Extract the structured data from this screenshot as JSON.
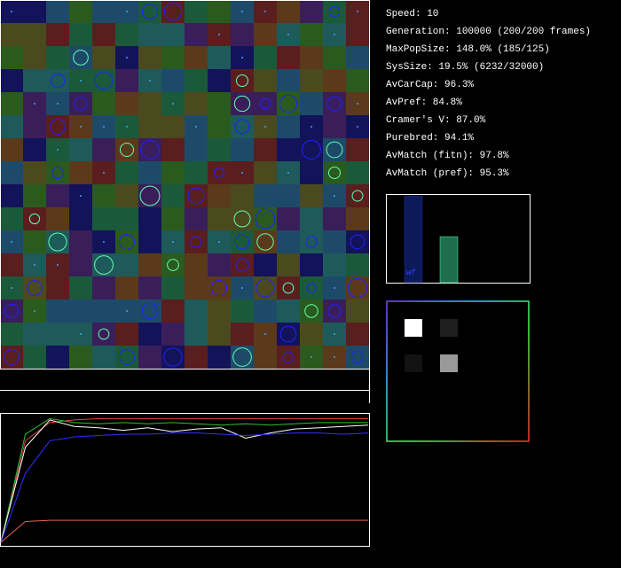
{
  "stats": [
    "Speed: 10",
    "Generation: 100000 (200/200 frames)",
    "MaxPopSize: 148.0% (185/125)",
    "SysSize: 19.5% (6232/32000)",
    "AvCarCap: 96.3%",
    "AvPref: 84.8%",
    "Cramer's V: 87.0%",
    "Purebred: 94.1%",
    "AvMatch (fitn): 97.8%",
    "AvMatch (pref): 95.3%"
  ],
  "bar_chart": {
    "caption": "wf",
    "values": [
      100,
      53
    ],
    "colors": [
      "#0d1a5a",
      "#1e6e4e"
    ],
    "ylim": [
      0,
      100
    ]
  },
  "matrix": {
    "values": [
      [
        100,
        12
      ],
      [
        7,
        60
      ]
    ]
  },
  "history": {
    "ylim": [
      0,
      100
    ],
    "series": [
      {
        "color": "#e04040",
        "values": [
          2,
          80,
          94,
          96,
          97,
          97,
          97,
          97,
          97,
          97,
          97,
          97,
          97,
          97,
          97,
          97
        ]
      },
      {
        "color": "#30c030",
        "values": [
          2,
          85,
          97,
          94,
          93,
          94,
          93,
          94,
          93,
          92,
          93,
          92,
          93,
          94,
          94,
          94
        ]
      },
      {
        "color": "#ffffff",
        "values": [
          2,
          75,
          96,
          91,
          90,
          88,
          90,
          87,
          89,
          90,
          82,
          86,
          89,
          90,
          91,
          92
        ]
      },
      {
        "color": "#3030ff",
        "values": [
          2,
          55,
          80,
          83,
          84,
          85,
          85,
          86,
          86,
          85,
          84,
          85,
          86,
          86,
          85,
          86
        ]
      },
      {
        "color": "#e06050",
        "values": [
          2,
          18,
          19,
          19,
          19,
          19,
          19,
          19,
          19,
          19,
          19,
          19,
          19,
          19,
          19,
          19
        ]
      }
    ]
  }
}
